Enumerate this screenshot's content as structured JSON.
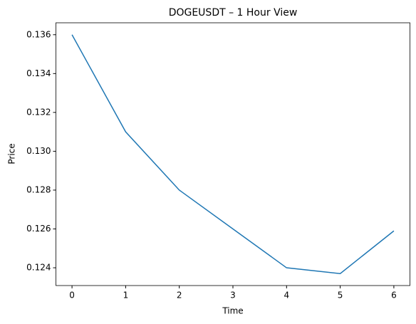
{
  "chart_data": {
    "type": "line",
    "title": "DOGEUSDT – 1 Hour View",
    "x_label": "Time",
    "y_label": "Price",
    "x": [
      0,
      1,
      2,
      3,
      4,
      5,
      6
    ],
    "series": [
      {
        "color": "#1f77b4",
        "values": [
          0.136,
          0.131,
          0.128,
          0.126,
          0.124,
          0.1237,
          0.1259
        ]
      }
    ],
    "xlim": [
      -0.3,
      6.3
    ],
    "xticks": [
      0,
      1,
      2,
      3,
      4,
      5,
      6
    ],
    "ylim": [
      0.123085,
      0.136615
    ],
    "yticks": [
      0.124,
      0.126,
      0.128,
      {
        "value": 0.13,
        "label": "0.130"
      },
      0.132,
      0.134,
      0.136
    ],
    "grid": false
  }
}
